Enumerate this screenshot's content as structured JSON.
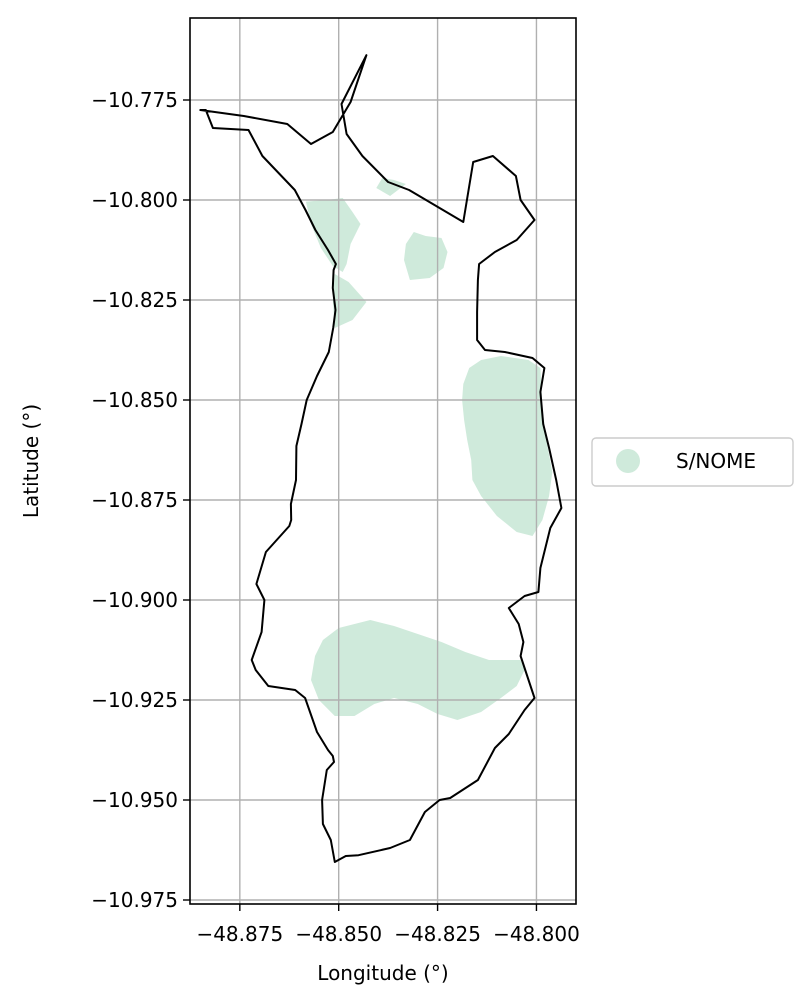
{
  "chart_data": {
    "type": "map",
    "xlabel": "Longitude (°)",
    "ylabel": "Latitude (°)",
    "xlim": [
      -48.8876,
      -48.79
    ],
    "ylim": [
      -10.976,
      -10.7545
    ],
    "grid": true,
    "x_ticks": [
      {
        "value": -48.875,
        "label": "−48.875"
      },
      {
        "value": -48.85,
        "label": "−48.850"
      },
      {
        "value": -48.825,
        "label": "−48.825"
      },
      {
        "value": -48.8,
        "label": "−48.800"
      }
    ],
    "y_ticks": [
      {
        "value": -10.775,
        "label": "−10.775"
      },
      {
        "value": -10.8,
        "label": "−10.800"
      },
      {
        "value": -10.825,
        "label": "−10.825"
      },
      {
        "value": -10.85,
        "label": "−10.850"
      },
      {
        "value": -10.875,
        "label": "−10.875"
      },
      {
        "value": -10.9,
        "label": "−10.900"
      },
      {
        "value": -10.925,
        "label": "−10.925"
      },
      {
        "value": -10.95,
        "label": "−10.950"
      },
      {
        "value": -10.975,
        "label": "−10.975"
      }
    ],
    "legend": {
      "placement": "center-right-outside",
      "entries": [
        {
          "label": "S/NOME",
          "color": "#cfeadb"
        }
      ]
    },
    "boundary": {
      "stroke_color": "#000000",
      "points": [
        [
          -48.8836,
          -10.7775
        ],
        [
          -48.8818,
          -10.782
        ],
        [
          -48.8728,
          -10.7825
        ],
        [
          -48.8693,
          -10.789
        ],
        [
          -48.8611,
          -10.7975
        ],
        [
          -48.8584,
          -10.8025
        ],
        [
          -48.8559,
          -10.8075
        ],
        [
          -48.8527,
          -10.8125
        ],
        [
          -48.8507,
          -10.816
        ],
        [
          -48.8513,
          -10.8175
        ],
        [
          -48.8515,
          -10.822
        ],
        [
          -48.8508,
          -10.8275
        ],
        [
          -48.8514,
          -10.832
        ],
        [
          -48.8525,
          -10.838
        ],
        [
          -48.8555,
          -10.844
        ],
        [
          -48.8581,
          -10.85
        ],
        [
          -48.8594,
          -10.856
        ],
        [
          -48.8607,
          -10.8615
        ],
        [
          -48.8608,
          -10.87
        ],
        [
          -48.8621,
          -10.876
        ],
        [
          -48.862,
          -10.88
        ],
        [
          -48.8625,
          -10.8815
        ],
        [
          -48.8684,
          -10.888
        ],
        [
          -48.8708,
          -10.896
        ],
        [
          -48.8688,
          -10.9
        ],
        [
          -48.8695,
          -10.908
        ],
        [
          -48.872,
          -10.915
        ],
        [
          -48.871,
          -10.9175
        ],
        [
          -48.8678,
          -10.9215
        ],
        [
          -48.861,
          -10.9225
        ],
        [
          -48.8585,
          -10.9245
        ],
        [
          -48.8555,
          -10.933
        ],
        [
          -48.8527,
          -10.9375
        ],
        [
          -48.8515,
          -10.939
        ],
        [
          -48.8512,
          -10.9405
        ],
        [
          -48.853,
          -10.9425
        ],
        [
          -48.8542,
          -10.95
        ],
        [
          -48.854,
          -10.956
        ],
        [
          -48.852,
          -10.96
        ],
        [
          -48.851,
          -10.9655
        ],
        [
          -48.8482,
          -10.964
        ],
        [
          -48.845,
          -10.9638
        ],
        [
          -48.837,
          -10.962
        ],
        [
          -48.832,
          -10.96
        ],
        [
          -48.8282,
          -10.953
        ],
        [
          -48.8245,
          -10.95
        ],
        [
          -48.8218,
          -10.9495
        ],
        [
          -48.8148,
          -10.945
        ],
        [
          -48.8105,
          -10.937
        ],
        [
          -48.807,
          -10.9335
        ],
        [
          -48.803,
          -10.9275
        ],
        [
          -48.8005,
          -10.9245
        ],
        [
          -48.804,
          -10.914
        ],
        [
          -48.8033,
          -10.9105
        ],
        [
          -48.8045,
          -10.906
        ],
        [
          -48.807,
          -10.902
        ],
        [
          -48.803,
          -10.899
        ],
        [
          -48.7995,
          -10.898
        ],
        [
          -48.799,
          -10.892
        ],
        [
          -48.7965,
          -10.882
        ],
        [
          -48.7937,
          -10.877
        ],
        [
          -48.795,
          -10.87
        ],
        [
          -48.7968,
          -10.862
        ],
        [
          -48.7983,
          -10.856
        ],
        [
          -48.799,
          -10.848
        ],
        [
          -48.798,
          -10.842
        ],
        [
          -48.801,
          -10.8395
        ],
        [
          -48.808,
          -10.838
        ],
        [
          -48.813,
          -10.8375
        ],
        [
          -48.815,
          -10.835
        ],
        [
          -48.815,
          -10.828
        ],
        [
          -48.8148,
          -10.82
        ],
        [
          -48.8145,
          -10.816
        ],
        [
          -48.8105,
          -10.813
        ],
        [
          -48.805,
          -10.81
        ],
        [
          -48.8005,
          -10.805
        ],
        [
          -48.804,
          -10.8
        ],
        [
          -48.8052,
          -10.794
        ],
        [
          -48.811,
          -10.789
        ],
        [
          -48.816,
          -10.7905
        ],
        [
          -48.8185,
          -10.8055
        ],
        [
          -48.8322,
          -10.7975
        ],
        [
          -48.8375,
          -10.7955
        ],
        [
          -48.844,
          -10.789
        ],
        [
          -48.848,
          -10.7835
        ],
        [
          -48.8493,
          -10.776
        ],
        [
          -48.843,
          -10.7638
        ],
        [
          -48.847,
          -10.7755
        ],
        [
          -48.8515,
          -10.783
        ],
        [
          -48.857,
          -10.786
        ],
        [
          -48.863,
          -10.781
        ],
        [
          -48.874,
          -10.779
        ],
        [
          -48.885,
          -10.7775
        ],
        [
          -48.8836,
          -10.7775
        ]
      ]
    },
    "regions": [
      {
        "series": "S/NOME",
        "color": "#cfeadb",
        "points": [
          [
            -48.8583,
            -10.8004
          ],
          [
            -48.853,
            -10.8
          ],
          [
            -48.849,
            -10.7995
          ],
          [
            -48.8465,
            -10.803
          ],
          [
            -48.8445,
            -10.806
          ],
          [
            -48.847,
            -10.811
          ],
          [
            -48.848,
            -10.816
          ],
          [
            -48.849,
            -10.818
          ],
          [
            -48.8515,
            -10.8165
          ],
          [
            -48.8545,
            -10.812
          ],
          [
            -48.857,
            -10.806
          ]
        ]
      },
      {
        "series": "S/NOME",
        "color": "#cfeadb",
        "points": [
          [
            -48.839,
            -10.7945
          ],
          [
            -48.836,
            -10.795
          ],
          [
            -48.833,
            -10.796
          ],
          [
            -48.837,
            -10.799
          ],
          [
            -48.8405,
            -10.797
          ]
        ]
      },
      {
        "series": "S/NOME",
        "color": "#cfeadb",
        "points": [
          [
            -48.831,
            -10.808
          ],
          [
            -48.828,
            -10.809
          ],
          [
            -48.824,
            -10.8095
          ],
          [
            -48.8225,
            -10.813
          ],
          [
            -48.8235,
            -10.817
          ],
          [
            -48.827,
            -10.8195
          ],
          [
            -48.832,
            -10.82
          ],
          [
            -48.8335,
            -10.815
          ],
          [
            -48.833,
            -10.811
          ]
        ]
      },
      {
        "series": "S/NOME",
        "color": "#cfeadb",
        "points": [
          [
            -48.851,
            -10.8185
          ],
          [
            -48.8475,
            -10.8205
          ],
          [
            -48.843,
            -10.8255
          ],
          [
            -48.8465,
            -10.83
          ],
          [
            -48.851,
            -10.832
          ],
          [
            -48.8515,
            -10.825
          ]
        ]
      },
      {
        "series": "S/NOME",
        "color": "#cfeadb",
        "points": [
          [
            -48.809,
            -10.839
          ],
          [
            -48.814,
            -10.84
          ],
          [
            -48.817,
            -10.842
          ],
          [
            -48.8185,
            -10.846
          ],
          [
            -48.8188,
            -10.85
          ],
          [
            -48.8183,
            -10.855
          ],
          [
            -48.8175,
            -10.86
          ],
          [
            -48.8165,
            -10.865
          ],
          [
            -48.8162,
            -10.87
          ],
          [
            -48.814,
            -10.874
          ],
          [
            -48.81,
            -10.879
          ],
          [
            -48.805,
            -10.883
          ],
          [
            -48.801,
            -10.884
          ],
          [
            -48.7985,
            -10.88
          ],
          [
            -48.7968,
            -10.874
          ],
          [
            -48.796,
            -10.868
          ],
          [
            -48.7975,
            -10.86
          ],
          [
            -48.7985,
            -10.852
          ],
          [
            -48.7988,
            -10.846
          ],
          [
            -48.799,
            -10.842
          ],
          [
            -48.802,
            -10.84
          ]
        ]
      },
      {
        "series": "S/NOME",
        "color": "#cfeadb",
        "points": [
          [
            -48.854,
            -10.91
          ],
          [
            -48.85,
            -10.907
          ],
          [
            -48.842,
            -10.905
          ],
          [
            -48.836,
            -10.9065
          ],
          [
            -48.83,
            -10.9085
          ],
          [
            -48.824,
            -10.9105
          ],
          [
            -48.818,
            -10.913
          ],
          [
            -48.812,
            -10.915
          ],
          [
            -48.804,
            -10.915
          ],
          [
            -48.803,
            -10.9175
          ],
          [
            -48.805,
            -10.9215
          ],
          [
            -48.809,
            -10.9245
          ],
          [
            -48.814,
            -10.928
          ],
          [
            -48.82,
            -10.93
          ],
          [
            -48.825,
            -10.9285
          ],
          [
            -48.83,
            -10.926
          ],
          [
            -48.836,
            -10.9245
          ],
          [
            -48.841,
            -10.926
          ],
          [
            -48.846,
            -10.929
          ],
          [
            -48.851,
            -10.929
          ],
          [
            -48.855,
            -10.925
          ],
          [
            -48.857,
            -10.92
          ],
          [
            -48.856,
            -10.914
          ]
        ]
      }
    ]
  }
}
